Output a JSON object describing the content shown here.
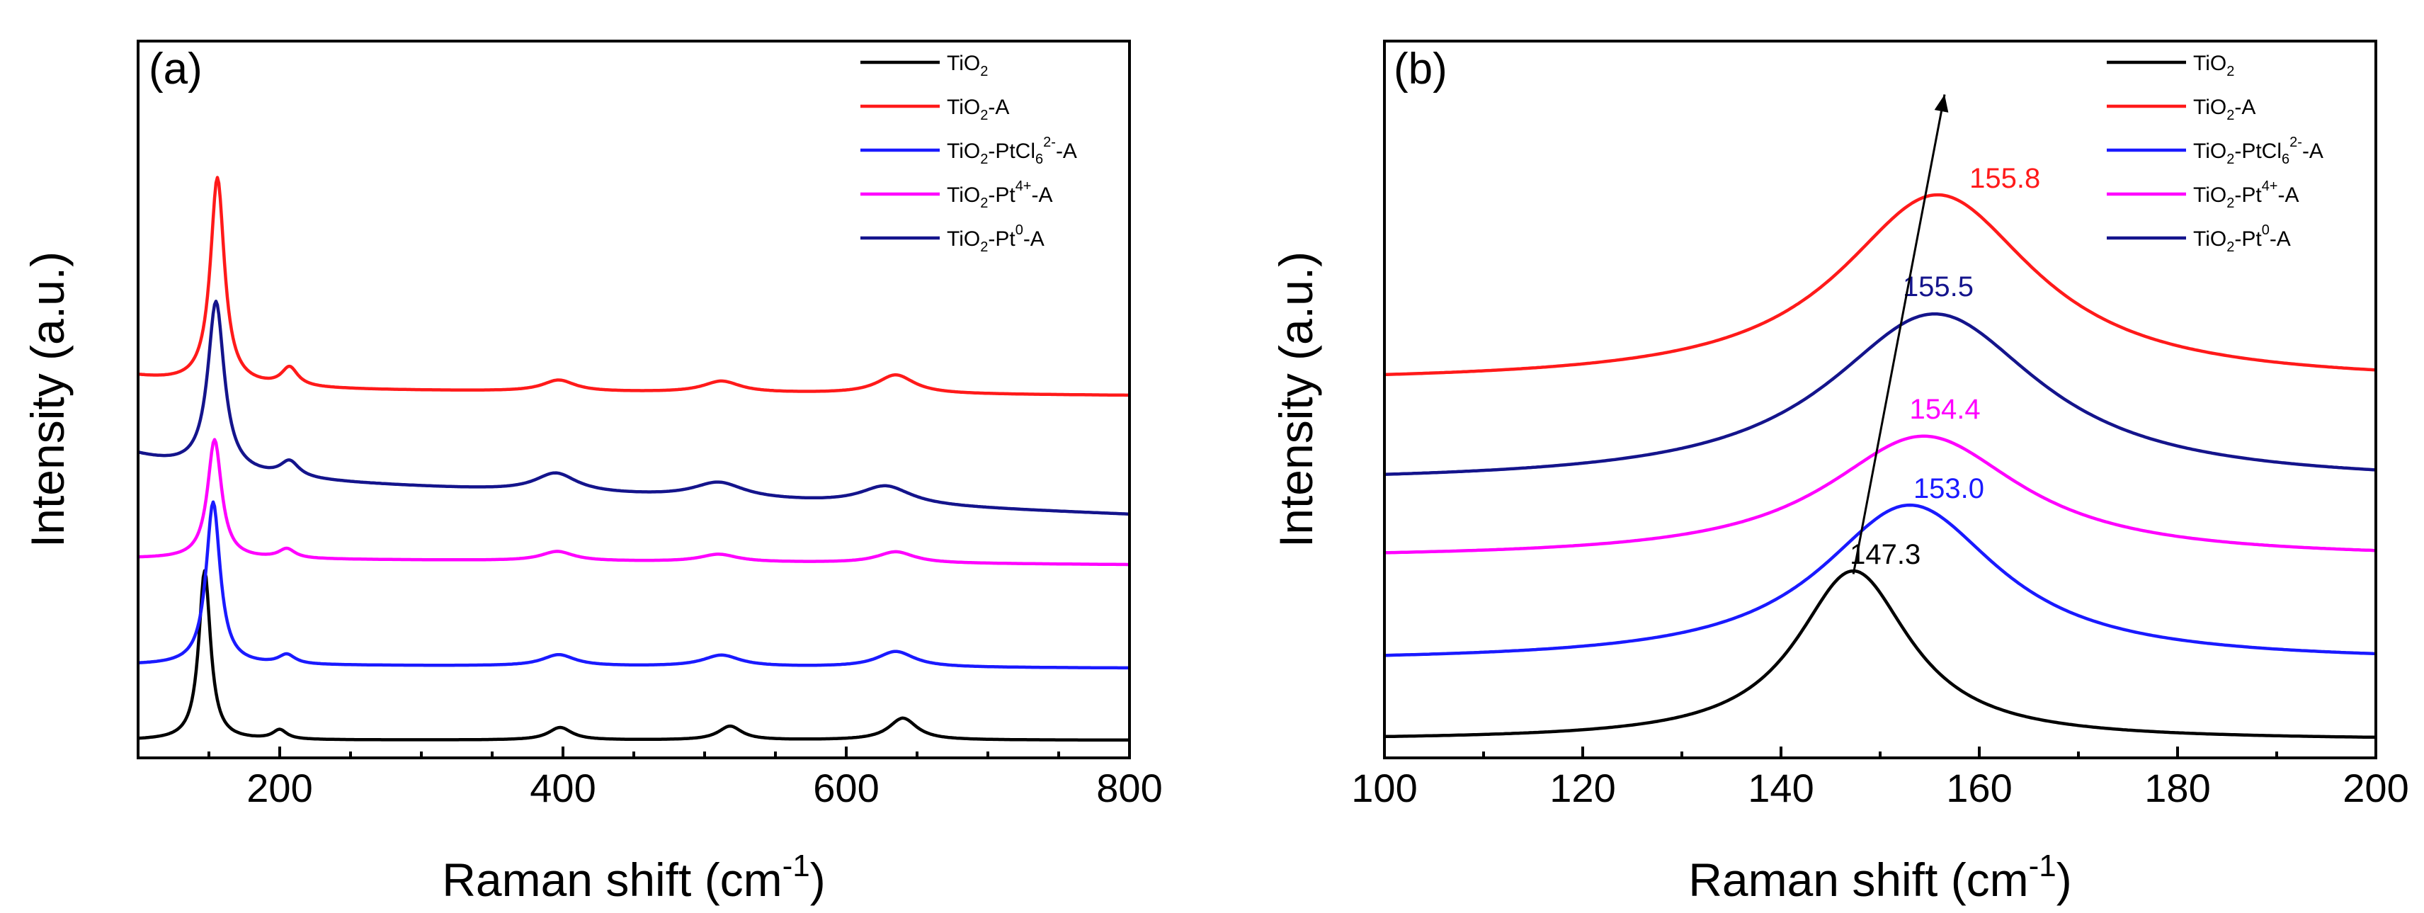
{
  "colors": {
    "TiO2": "#000000",
    "TiO2-A": "#ff1a1a",
    "TiO2-PtCl6-A": "#1a1aff",
    "TiO2-Pt4+-A": "#ff00ff",
    "TiO2-Pt0-A": "#14148c"
  },
  "legend": [
    {
      "key": "TiO2",
      "base": "TiO",
      "sub": "2",
      "mid": "",
      "sup": "",
      "tail": ""
    },
    {
      "key": "TiO2-A",
      "base": "TiO",
      "sub": "2",
      "mid": "-A",
      "sup": "",
      "tail": ""
    },
    {
      "key": "TiO2-PtCl6-A",
      "base": "TiO",
      "sub": "2",
      "mid": "-PtCl",
      "sub2": "6",
      "sup": "2-",
      "tail": "-A"
    },
    {
      "key": "TiO2-Pt4+-A",
      "base": "TiO",
      "sub": "2",
      "mid": "-Pt",
      "sup": "4+",
      "tail": "-A"
    },
    {
      "key": "TiO2-Pt0-A",
      "base": "TiO",
      "sub": "2",
      "mid": "-Pt",
      "sup": "0",
      "tail": "-A"
    }
  ],
  "chart_data": [
    {
      "type": "line",
      "panel": "(a)",
      "xlabel": "Raman shift (cm",
      "xlabel_sup": "-1",
      "xlabel_tail": ")",
      "ylabel": "Intensity (a.u.)",
      "xlim": [
        100,
        800
      ],
      "xticks": [
        200,
        400,
        600,
        800
      ],
      "ylim": [
        0,
        10
      ],
      "yticks_visible": false,
      "series": [
        {
          "name": "TiO2",
          "offset": 0.0,
          "end_drift": 0.0,
          "peaks": [
            [
              147,
              2.7,
              5
            ],
            [
              200,
              0.15,
              6
            ],
            [
              398,
              0.2,
              10
            ],
            [
              518,
              0.22,
              10
            ],
            [
              640,
              0.35,
              12
            ]
          ]
        },
        {
          "name": "TiO2-PtCl6-A",
          "offset": 1.2,
          "end_drift": -0.05,
          "peaks": [
            [
              153,
              2.6,
              6
            ],
            [
              205,
              0.15,
              7
            ],
            [
              397,
              0.18,
              14
            ],
            [
              512,
              0.18,
              16
            ],
            [
              635,
              0.25,
              16
            ]
          ]
        },
        {
          "name": "TiO2-Pt4+-A",
          "offset": 2.9,
          "end_drift": -0.1,
          "peaks": [
            [
              154,
              1.9,
              6
            ],
            [
              205,
              0.15,
              7
            ],
            [
              396,
              0.15,
              14
            ],
            [
              510,
              0.12,
              16
            ],
            [
              635,
              0.18,
              16
            ]
          ]
        },
        {
          "name": "TiO2-Pt0-A",
          "offset": 4.2,
          "end_drift": -0.6,
          "peaks": [
            [
              155,
              2.7,
              7
            ],
            [
              207,
              0.25,
              8
            ],
            [
              395,
              0.3,
              18
            ],
            [
              510,
              0.25,
              22
            ],
            [
              628,
              0.3,
              22
            ]
          ]
        },
        {
          "name": "TiO2-A",
          "offset": 5.6,
          "end_drift": -0.1,
          "peaks": [
            [
              156,
              3.3,
              6
            ],
            [
              207,
              0.3,
              7
            ],
            [
              397,
              0.18,
              14
            ],
            [
              512,
              0.18,
              16
            ],
            [
              635,
              0.3,
              16
            ]
          ]
        }
      ]
    },
    {
      "type": "line",
      "panel": "(b)",
      "xlabel": "Raman shift (cm",
      "xlabel_sup": "-1",
      "xlabel_tail": ")",
      "ylabel": "Intensity (a.u.)",
      "xlim": [
        100,
        200
      ],
      "xticks": [
        100,
        120,
        140,
        160,
        180,
        200
      ],
      "ylim": [
        0,
        10
      ],
      "yticks_visible": false,
      "series": [
        {
          "name": "TiO2",
          "offset": 0.0,
          "peak": 147.3,
          "height": 2.7,
          "width": 7,
          "label": "147.3"
        },
        {
          "name": "TiO2-PtCl6-A",
          "offset": 1.25,
          "peak": 153.0,
          "height": 2.5,
          "width": 11,
          "label": "153.0"
        },
        {
          "name": "TiO2-Pt4+-A",
          "offset": 2.9,
          "peak": 154.4,
          "height": 1.95,
          "width": 12,
          "label": "154.4"
        },
        {
          "name": "TiO2-Pt0-A",
          "offset": 4.1,
          "peak": 155.5,
          "height": 2.7,
          "width": 13,
          "label": "155.5"
        },
        {
          "name": "TiO2-A",
          "offset": 5.7,
          "peak": 155.8,
          "height": 3.0,
          "width": 12,
          "label": "155.8"
        }
      ],
      "arrow": {
        "from": [
          147.3,
          2.65
        ],
        "to": [
          156.5,
          10.3
        ]
      }
    }
  ]
}
